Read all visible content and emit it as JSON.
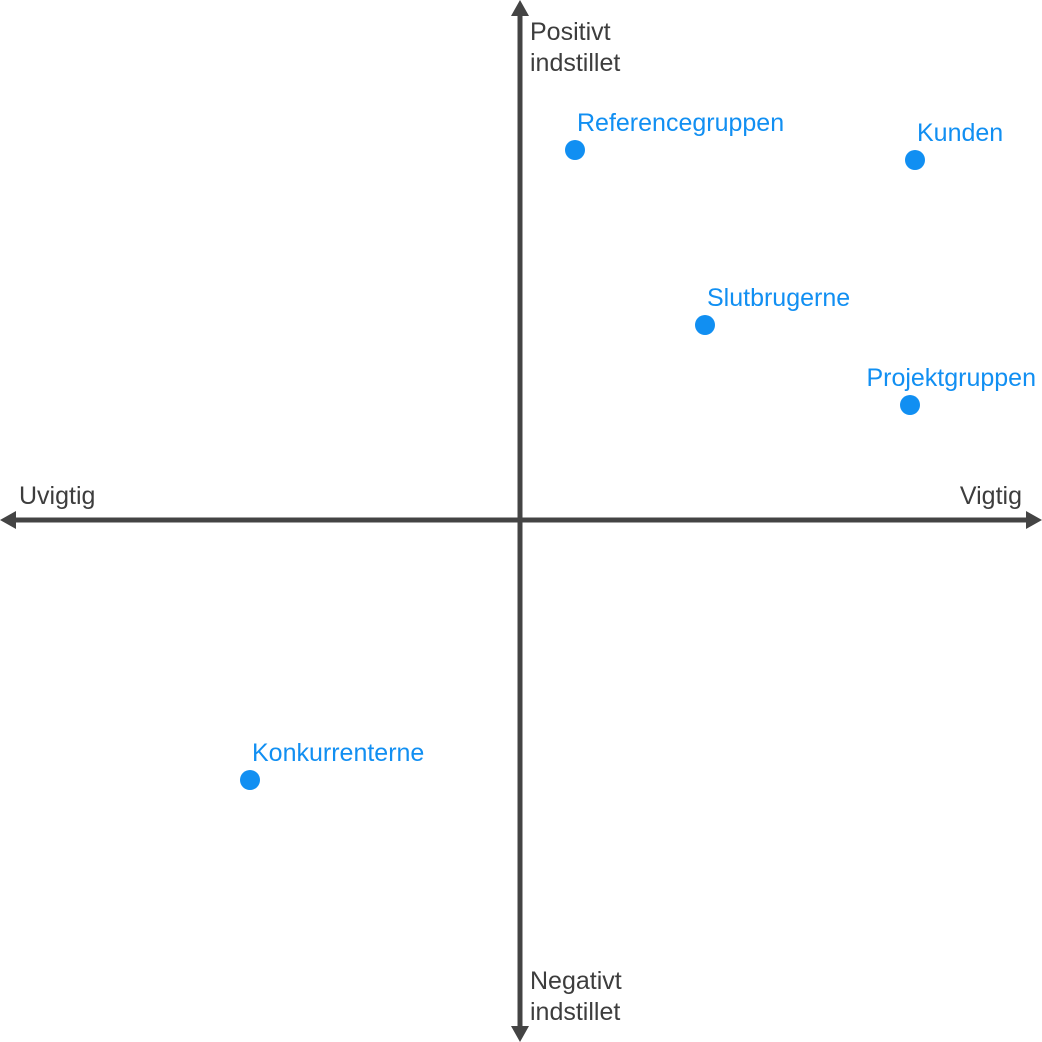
{
  "axes": {
    "top_line1": "Positivt",
    "top_line2": "indstillet",
    "bottom_line1": "Negativt",
    "bottom_line2": "indstillet",
    "left": "Uvigtig",
    "right": "Vigtig"
  },
  "colors": {
    "axis": "#444444",
    "point": "#118ff2",
    "axis_text": "#3d3d3d"
  },
  "points": [
    {
      "label": "Referencegruppen",
      "importance": 0.11,
      "attitude": 0.74
    },
    {
      "label": "Kunden",
      "importance": 0.79,
      "attitude": 0.72
    },
    {
      "label": "Slutbrugerne",
      "importance": 0.37,
      "attitude": 0.39
    },
    {
      "label": "Projektgruppen",
      "importance": 0.78,
      "attitude": 0.23
    },
    {
      "label": "Konkurrenterne",
      "importance": -0.54,
      "attitude": -0.52
    }
  ]
}
